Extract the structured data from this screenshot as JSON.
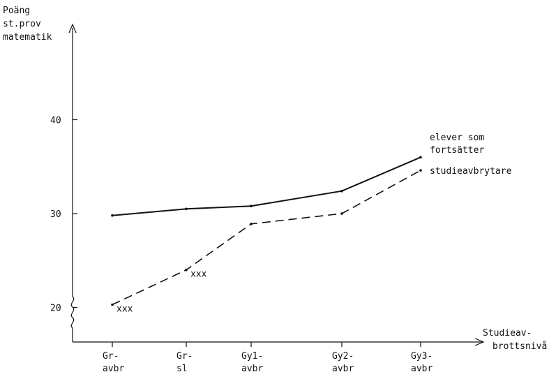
{
  "chart_data": {
    "type": "line",
    "ylabel_lines": [
      "Poäng",
      "st.prov",
      "matematik"
    ],
    "xlabel_lines": [
      "Studieav-",
      "brottsnivå"
    ],
    "categories": [
      [
        "Gr-",
        "avbr"
      ],
      [
        "Gr-",
        "sl"
      ],
      [
        "Gy1-",
        "avbr"
      ],
      [
        "Gy2-",
        "avbr"
      ],
      [
        "Gy3-",
        "avbr"
      ]
    ],
    "yticks": [
      "20",
      "30",
      "40"
    ],
    "ylim": [
      20,
      40
    ],
    "axis_break": true,
    "series": [
      {
        "name": "elever som fortsätter",
        "style": "solid",
        "values": [
          29.8,
          30.5,
          30.8,
          32.4,
          36.0
        ]
      },
      {
        "name": "studieavbrytare",
        "style": "dashed",
        "values": [
          20.3,
          24.0,
          28.9,
          30.0,
          34.6
        ]
      }
    ],
    "annotations": [
      {
        "text": "xxx",
        "category_index": 0,
        "series_index": 1
      },
      {
        "text": "xxx",
        "category_index": 1,
        "series_index": 1
      }
    ],
    "legend_labels": [
      "elever som",
      "fortsätter"
    ],
    "legend_label_2": "studieavbrytare"
  }
}
